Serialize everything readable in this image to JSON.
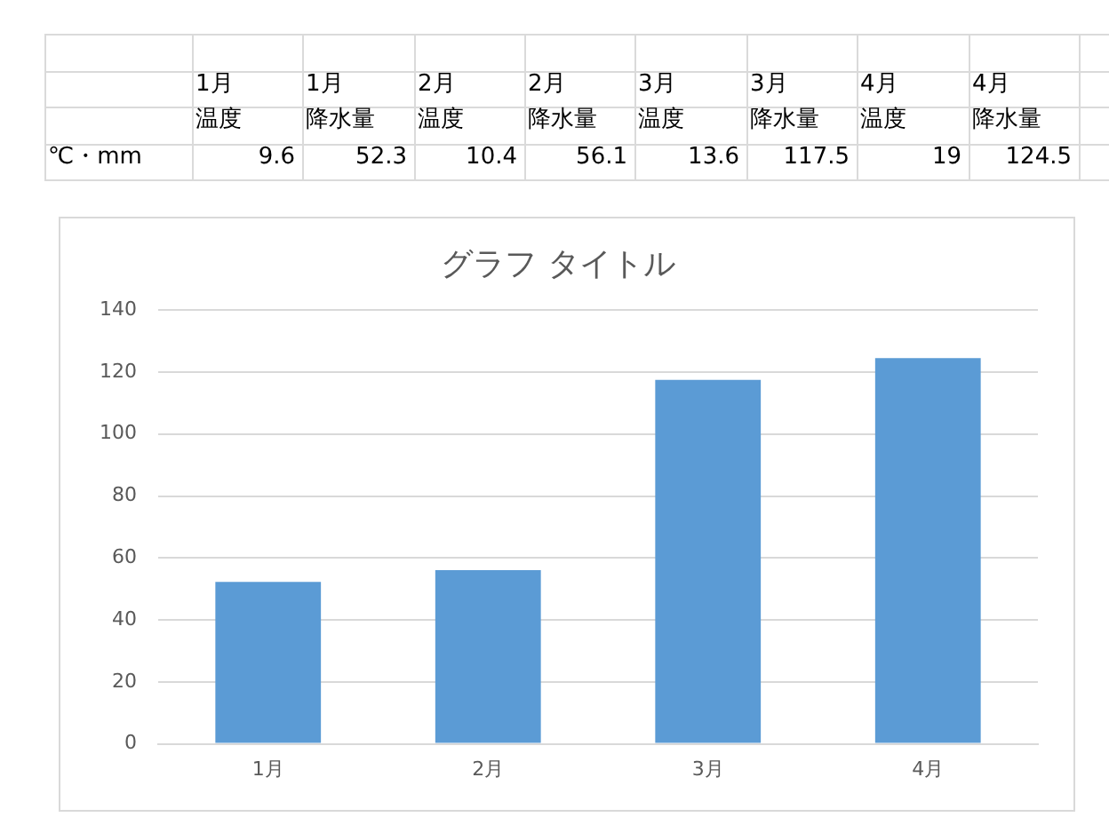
{
  "chart_data": {
    "type": "bar",
    "title": "グラフ タイトル",
    "categories": [
      "1月",
      "2月",
      "3月",
      "4月"
    ],
    "values": [
      52.3,
      56.1,
      117.5,
      124.5
    ],
    "color": "#5b9bd5",
    "ylim": [
      0,
      140
    ],
    "yticks": [
      0,
      20,
      40,
      60,
      80,
      100,
      120,
      140
    ],
    "grid": "y",
    "annotations": [
      "1月",
      "1月",
      "2月",
      "2月",
      "3月",
      "3月",
      "4月",
      "4月",
      "温度",
      "降水量",
      "温度",
      "降水量",
      "温度",
      "降水量",
      "温度",
      "降水量",
      "℃・mm",
      "9.6",
      "52.3",
      "10.4",
      "56.1",
      "13.6",
      "117.5",
      "19",
      "124.5"
    ]
  }
}
